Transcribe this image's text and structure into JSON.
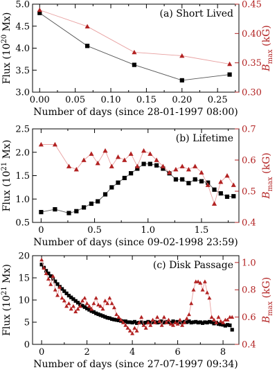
{
  "figure": {
    "background": "#ffffff"
  },
  "chart_data": [
    {
      "type": "line",
      "panel_label": "(a) Short Lived",
      "xlabel": "Number of days (since 28-01-1997 08:00)",
      "ylabel_left": {
        "main": "Flux (10",
        "sup": "20",
        "tail": " Mx)"
      },
      "ylabel_right": {
        "main": "B",
        "sub": "max",
        "tail": " (kG)"
      },
      "xlim": [
        -0.01,
        0.28
      ],
      "ylim_left": [
        3.0,
        5.0
      ],
      "ylim_right": [
        0.3,
        0.45
      ],
      "x_ticks": [
        0.0,
        0.05,
        0.1,
        0.15,
        0.2,
        0.25
      ],
      "x_ticklabels": [
        "0.00",
        "0.05",
        "0.10",
        "0.15",
        "0.20",
        "0.25"
      ],
      "x_minor": [
        0.025,
        0.075,
        0.125,
        0.175,
        0.225,
        0.275
      ],
      "y_left_ticks": [
        3.0,
        3.5,
        4.0,
        4.5,
        5.0
      ],
      "y_left_ticklabels": [
        "3.0",
        "3.5",
        "4.0",
        "4.5",
        "5.0"
      ],
      "y_right_ticks": [
        0.3,
        0.35,
        0.4,
        0.45
      ],
      "y_right_ticklabels": [
        "0.30",
        "0.35",
        "0.40",
        "0.45"
      ],
      "series": [
        {
          "axis": "left",
          "marker": "square",
          "color": "#000000",
          "line_color": "#555555",
          "x": [
            0.0,
            0.067,
            0.133,
            0.2,
            0.267
          ],
          "y": [
            4.8,
            4.05,
            3.62,
            3.27,
            3.4
          ]
        },
        {
          "axis": "right",
          "marker": "triangle",
          "color": "#b22222",
          "line_color": "#e8a0a0",
          "x": [
            0.0,
            0.067,
            0.133,
            0.2,
            0.267
          ],
          "y": [
            0.44,
            0.412,
            0.368,
            0.362,
            0.348
          ]
        }
      ]
    },
    {
      "type": "line",
      "panel_label": "(b) Lifetime",
      "xlabel": "Number of days (since 09-02-1998 23:59)",
      "ylabel_left": {
        "main": "Flux (10",
        "sup": "21",
        "tail": " Mx)"
      },
      "ylabel_right": {
        "main": "B",
        "sub": "max",
        "tail": " (kG)"
      },
      "xlim": [
        -0.08,
        1.85
      ],
      "ylim_left": [
        0.5,
        2.5
      ],
      "ylim_right": [
        0.4,
        0.7
      ],
      "x_ticks": [
        0.0,
        0.5,
        1.0,
        1.5
      ],
      "x_ticklabels": [
        "0",
        "0.5",
        "1.0",
        "1.5"
      ],
      "x_minor": [
        0.25,
        0.75,
        1.25,
        1.75
      ],
      "y_left_ticks": [
        0.5,
        1.0,
        1.5,
        2.0,
        2.5
      ],
      "y_left_ticklabels": [
        "0.5",
        "1.0",
        "1.5",
        "2.0",
        "2.5"
      ],
      "y_right_ticks": [
        0.4,
        0.5,
        0.6,
        0.7
      ],
      "y_right_ticklabels": [
        "0.4",
        "0.5",
        "0.6",
        "0.7"
      ],
      "series": [
        {
          "axis": "left",
          "marker": "square",
          "color": "#000000",
          "line_color": "#555555",
          "x": [
            0.0,
            0.13,
            0.26,
            0.33,
            0.4,
            0.47,
            0.53,
            0.6,
            0.66,
            0.72,
            0.78,
            0.84,
            0.9,
            0.96,
            1.02,
            1.08,
            1.14,
            1.2,
            1.26,
            1.32,
            1.38,
            1.44,
            1.5,
            1.56,
            1.62,
            1.68,
            1.74,
            1.8
          ],
          "y": [
            0.72,
            0.78,
            0.7,
            0.74,
            0.82,
            0.9,
            0.95,
            1.1,
            1.25,
            1.35,
            1.45,
            1.55,
            1.65,
            1.75,
            1.75,
            1.72,
            1.65,
            1.55,
            1.42,
            1.42,
            1.34,
            1.42,
            1.38,
            1.35,
            1.2,
            1.12,
            1.05,
            1.06
          ]
        },
        {
          "axis": "right",
          "marker": "triangle",
          "color": "#b22222",
          "line_color": "#e8a0a0",
          "x": [
            0.0,
            0.13,
            0.26,
            0.33,
            0.4,
            0.47,
            0.53,
            0.6,
            0.66,
            0.72,
            0.78,
            0.84,
            0.9,
            0.96,
            1.02,
            1.08,
            1.14,
            1.2,
            1.26,
            1.32,
            1.38,
            1.44,
            1.5,
            1.56,
            1.62,
            1.68,
            1.74,
            1.8
          ],
          "y": [
            0.65,
            0.65,
            0.58,
            0.57,
            0.6,
            0.62,
            0.59,
            0.63,
            0.58,
            0.61,
            0.6,
            0.62,
            0.58,
            0.63,
            0.62,
            0.6,
            0.58,
            0.56,
            0.57,
            0.58,
            0.57,
            0.58,
            0.56,
            0.52,
            0.46,
            0.53,
            0.55,
            0.52
          ]
        }
      ]
    },
    {
      "type": "line",
      "panel_label": "(c) Disk Passage",
      "xlabel": "Number of days (since 27-07-1997 09:34)",
      "ylabel_left": {
        "main": "Flux (10",
        "sup": "21",
        "tail": " Mx)"
      },
      "ylabel_right": {
        "main": "B",
        "sub": "max",
        "tail": " (kG)"
      },
      "xlim": [
        -0.4,
        8.7
      ],
      "ylim_left": [
        0,
        20
      ],
      "ylim_right": [
        0.4,
        1.05
      ],
      "x_ticks": [
        0,
        2,
        4,
        6,
        8
      ],
      "x_ticklabels": [
        "0",
        "2",
        "4",
        "6",
        "8"
      ],
      "x_minor": [
        1,
        3,
        5,
        7
      ],
      "y_left_ticks": [
        0,
        5,
        10,
        15,
        20
      ],
      "y_left_ticklabels": [
        "0",
        "5",
        "10",
        "15",
        "20"
      ],
      "y_right_ticks": [
        0.4,
        0.6,
        0.8,
        1.0
      ],
      "y_right_ticklabels": [
        "0.4",
        "0.6",
        "0.8",
        "1.0"
      ],
      "series": [
        {
          "axis": "left",
          "marker": "square",
          "color": "#000000",
          "line_color": "#555555",
          "x": [
            0.0,
            0.1,
            0.2,
            0.3,
            0.4,
            0.5,
            0.6,
            0.7,
            0.8,
            0.9,
            1.0,
            1.1,
            1.2,
            1.3,
            1.4,
            1.5,
            1.6,
            1.7,
            1.8,
            1.9,
            2.0,
            2.1,
            2.2,
            2.3,
            2.4,
            2.5,
            2.6,
            2.7,
            2.8,
            2.9,
            3.0,
            3.1,
            3.2,
            3.3,
            3.4,
            3.5,
            3.6,
            3.7,
            3.8,
            3.9,
            4.0,
            4.1,
            4.2,
            4.3,
            4.4,
            4.5,
            4.6,
            4.7,
            4.8,
            4.9,
            5.0,
            5.1,
            5.2,
            5.3,
            5.4,
            5.5,
            5.6,
            5.7,
            5.8,
            5.9,
            6.0,
            6.1,
            6.2,
            6.3,
            6.4,
            6.5,
            6.6,
            6.7,
            6.8,
            6.9,
            7.0,
            7.1,
            7.2,
            7.3,
            7.4,
            7.5,
            7.6,
            7.7,
            7.8,
            7.9,
            8.0,
            8.1,
            8.2,
            8.3,
            8.4
          ],
          "y": [
            18.0,
            17.3,
            16.6,
            16.0,
            15.4,
            14.8,
            14.2,
            13.6,
            13.0,
            12.5,
            12.0,
            11.5,
            11.0,
            10.6,
            10.2,
            9.8,
            9.4,
            9.0,
            8.7,
            8.4,
            8.1,
            7.8,
            7.5,
            7.3,
            7.0,
            6.8,
            6.6,
            6.4,
            6.2,
            6.0,
            5.9,
            5.7,
            5.6,
            5.5,
            5.4,
            5.3,
            5.2,
            5.2,
            5.0,
            5.0,
            4.9,
            5.1,
            4.8,
            4.9,
            5.0,
            4.8,
            4.9,
            5.1,
            4.9,
            5.0,
            5.1,
            4.9,
            5.0,
            5.2,
            4.9,
            5.1,
            5.0,
            4.9,
            5.2,
            5.0,
            5.1,
            5.0,
            4.9,
            5.1,
            5.0,
            5.2,
            4.9,
            5.0,
            5.1,
            4.9,
            5.0,
            4.8,
            5.0,
            4.9,
            5.1,
            5.0,
            4.7,
            4.9,
            4.6,
            4.5,
            4.4,
            4.2,
            4.4,
            4.3,
            3.3
          ]
        },
        {
          "axis": "right",
          "marker": "triangle",
          "color": "#b22222",
          "line_color": "#e8a0a0",
          "x": [
            0.0,
            0.1,
            0.2,
            0.3,
            0.4,
            0.5,
            0.6,
            0.7,
            0.8,
            0.9,
            1.0,
            1.1,
            1.2,
            1.3,
            1.4,
            1.5,
            1.6,
            1.7,
            1.8,
            1.9,
            2.0,
            2.1,
            2.2,
            2.3,
            2.4,
            2.5,
            2.6,
            2.7,
            2.8,
            2.9,
            3.0,
            3.1,
            3.2,
            3.3,
            3.4,
            3.5,
            3.6,
            3.7,
            3.8,
            3.9,
            4.0,
            4.1,
            4.2,
            4.3,
            4.4,
            4.5,
            4.6,
            4.7,
            4.8,
            4.9,
            5.0,
            5.1,
            5.2,
            5.3,
            5.4,
            5.5,
            5.6,
            5.7,
            5.8,
            5.9,
            6.0,
            6.1,
            6.2,
            6.3,
            6.4,
            6.5,
            6.6,
            6.7,
            6.8,
            6.9,
            7.0,
            7.1,
            7.2,
            7.3,
            7.4,
            7.5,
            7.6,
            7.7,
            7.8,
            7.9,
            8.0,
            8.1,
            8.2,
            8.3,
            8.4
          ],
          "y": [
            1.02,
            0.96,
            0.92,
            0.88,
            0.84,
            0.9,
            0.8,
            0.76,
            0.82,
            0.74,
            0.72,
            0.68,
            0.7,
            0.66,
            0.68,
            0.64,
            0.66,
            0.68,
            0.72,
            0.74,
            0.7,
            0.68,
            0.66,
            0.7,
            0.74,
            0.69,
            0.68,
            0.66,
            0.72,
            0.7,
            0.74,
            0.7,
            0.67,
            0.62,
            0.6,
            0.58,
            0.56,
            0.54,
            0.52,
            0.5,
            0.48,
            0.52,
            0.5,
            0.56,
            0.6,
            0.54,
            0.52,
            0.56,
            0.54,
            0.58,
            0.56,
            0.6,
            0.57,
            0.54,
            0.6,
            0.56,
            0.58,
            0.55,
            0.54,
            0.56,
            0.55,
            0.58,
            0.54,
            0.56,
            0.59,
            0.62,
            0.7,
            0.8,
            0.86,
            0.86,
            0.85,
            0.8,
            0.86,
            0.78,
            0.74,
            0.6,
            0.58,
            0.56,
            0.6,
            0.57,
            0.56,
            0.58,
            0.58,
            0.6,
            0.6
          ]
        }
      ]
    }
  ]
}
